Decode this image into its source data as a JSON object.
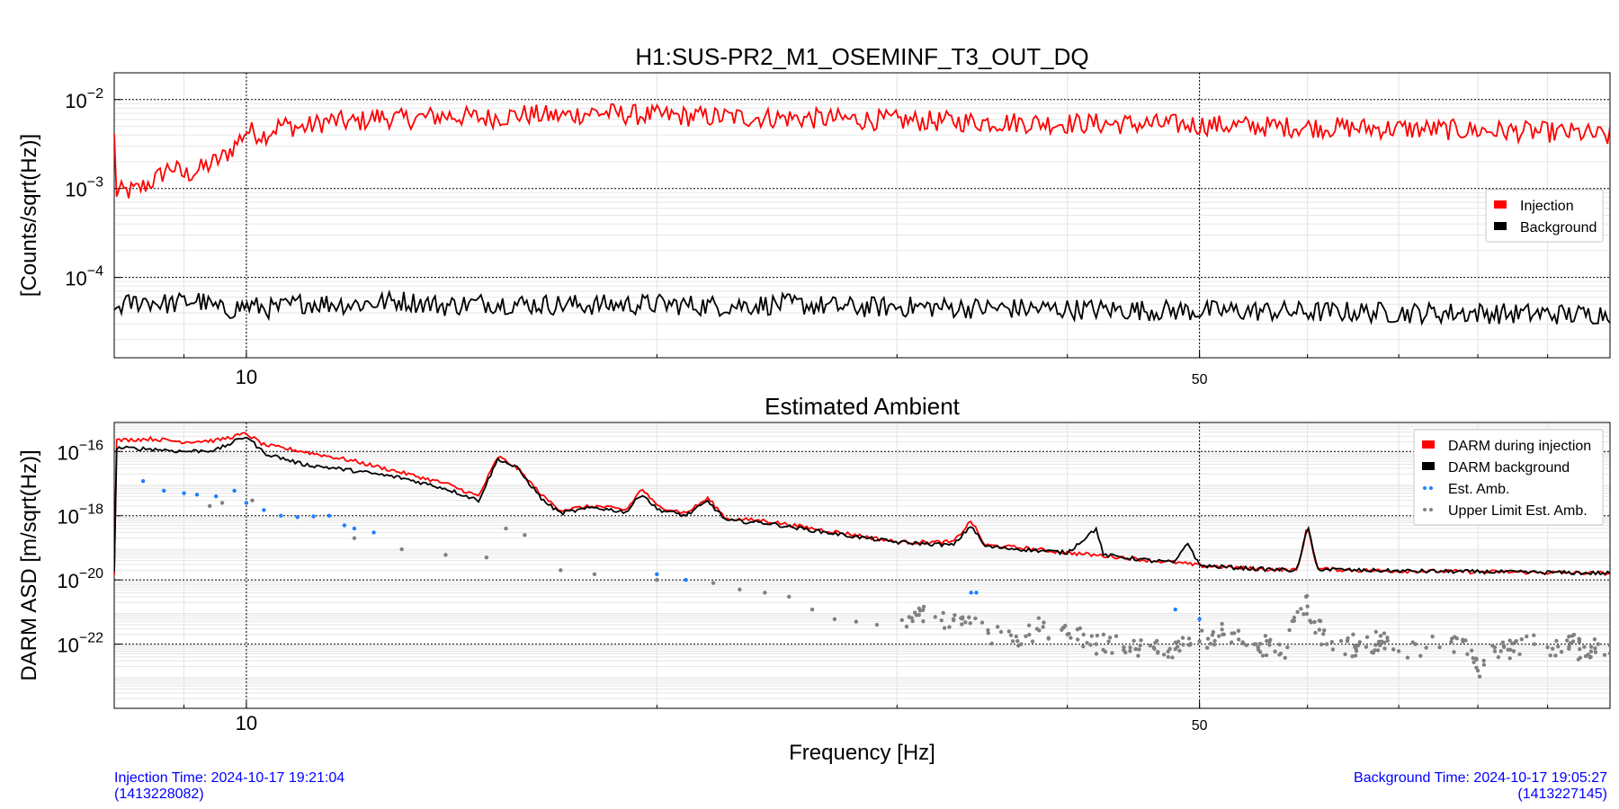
{
  "colors": {
    "injection": "#ff0000",
    "background": "#000000",
    "est_amb": "#1e7fff",
    "upper_limit": "#808080",
    "footer_text": "#0000ff"
  },
  "footer": {
    "injection_time": "Injection Time: 2024-10-17 19:21:04",
    "injection_gps": "(1413228082)",
    "background_time": "Background Time: 2024-10-17 19:05:27",
    "background_gps": "(1413227145)"
  },
  "chart_data": [
    {
      "type": "line",
      "title": "H1:SUS-PR2_M1_OSEMINF_T3_OUT_DQ",
      "xlabel": "",
      "ylabel": "[Counts/sqrt(Hz)]",
      "xscale": "log",
      "yscale": "log",
      "xlim": [
        8,
        100
      ],
      "ylim": [
        1.25e-05,
        0.02
      ],
      "xticks": [
        {
          "value": 10,
          "label": "10"
        },
        {
          "value": 50,
          "label": "50"
        }
      ],
      "yticks": [
        {
          "value": 0.01,
          "base": "10",
          "exp": "−2"
        },
        {
          "value": 0.001,
          "base": "10",
          "exp": "−3"
        },
        {
          "value": 0.0001,
          "base": "10",
          "exp": "−4"
        }
      ],
      "grid": true,
      "legend_position": "right",
      "series": [
        {
          "name": "Injection",
          "kind": "line",
          "points": [
            [
              8,
              0.0009
            ],
            [
              8.3,
              0.00095
            ],
            [
              8.6,
              0.0013
            ],
            [
              8.8,
              0.0018
            ],
            [
              9,
              0.0014
            ],
            [
              9.3,
              0.0017
            ],
            [
              9.6,
              0.0022
            ],
            [
              9.8,
              0.003
            ],
            [
              10,
              0.0045
            ],
            [
              10.3,
              0.004
            ],
            [
              10.6,
              0.0052
            ],
            [
              11,
              0.0048
            ],
            [
              11.5,
              0.0058
            ],
            [
              12,
              0.0055
            ],
            [
              12.5,
              0.0064
            ],
            [
              13,
              0.006
            ],
            [
              14,
              0.0066
            ],
            [
              15,
              0.0062
            ],
            [
              16,
              0.0068
            ],
            [
              17,
              0.0065
            ],
            [
              18,
              0.0072
            ],
            [
              19,
              0.0068
            ],
            [
              20,
              0.0066
            ],
            [
              22,
              0.0064
            ],
            [
              25,
              0.0062
            ],
            [
              28,
              0.006
            ],
            [
              30,
              0.0058
            ],
            [
              35,
              0.0056
            ],
            [
              40,
              0.0054
            ],
            [
              45,
              0.0053
            ],
            [
              50,
              0.0052
            ],
            [
              55,
              0.005
            ],
            [
              60,
              0.0049
            ],
            [
              65,
              0.0048
            ],
            [
              70,
              0.0047
            ],
            [
              75,
              0.0046
            ],
            [
              80,
              0.0045
            ],
            [
              85,
              0.0044
            ],
            [
              90,
              0.0043
            ],
            [
              95,
              0.0042
            ],
            [
              100,
              0.0038
            ]
          ]
        },
        {
          "name": "Background",
          "kind": "line",
          "points": [
            [
              8,
              4.6e-05
            ],
            [
              8.4,
              5.5e-05
            ],
            [
              8.8,
              5e-05
            ],
            [
              9.2,
              5.6e-05
            ],
            [
              9.6,
              4.2e-05
            ],
            [
              10,
              4.8e-05
            ],
            [
              10.5,
              4.4e-05
            ],
            [
              11,
              5.2e-05
            ],
            [
              12,
              5e-05
            ],
            [
              13,
              5.5e-05
            ],
            [
              14,
              4.8e-05
            ],
            [
              15,
              5.2e-05
            ],
            [
              16,
              5e-05
            ],
            [
              18,
              4.9e-05
            ],
            [
              20,
              5e-05
            ],
            [
              22,
              4.8e-05
            ],
            [
              25,
              5e-05
            ],
            [
              28,
              4.6e-05
            ],
            [
              30,
              4.7e-05
            ],
            [
              35,
              4.5e-05
            ],
            [
              40,
              4.4e-05
            ],
            [
              45,
              4.3e-05
            ],
            [
              50,
              4.2e-05
            ],
            [
              55,
              4.2e-05
            ],
            [
              60,
              4.1e-05
            ],
            [
              65,
              4.1e-05
            ],
            [
              70,
              4e-05
            ],
            [
              75,
              4e-05
            ],
            [
              80,
              4e-05
            ],
            [
              85,
              3.9e-05
            ],
            [
              90,
              3.9e-05
            ],
            [
              95,
              3.8e-05
            ],
            [
              100,
              4e-05
            ]
          ]
        }
      ]
    },
    {
      "type": "line",
      "title": "Estimated Ambient",
      "xlabel": "Frequency [Hz]",
      "ylabel": "DARM ASD [m/sqrt(Hz)]",
      "xscale": "log",
      "yscale": "log",
      "xlim": [
        8,
        100
      ],
      "ylim": [
        1e-24,
        8e-16
      ],
      "xticks": [
        {
          "value": 10,
          "label": "10"
        },
        {
          "value": 50,
          "label": "50"
        }
      ],
      "yticks": [
        {
          "value": 1e-16,
          "base": "10",
          "exp": "−16"
        },
        {
          "value": 1e-18,
          "base": "10",
          "exp": "−18"
        },
        {
          "value": 1e-20,
          "base": "10",
          "exp": "−20"
        },
        {
          "value": 1e-22,
          "base": "10",
          "exp": "−22"
        }
      ],
      "grid": true,
      "legend_position": "top-right",
      "series": [
        {
          "name": "DARM during injection",
          "kind": "line",
          "points": [
            [
              8,
              2.2e-16
            ],
            [
              8.5,
              2.5e-16
            ],
            [
              9,
              2e-16
            ],
            [
              9.5,
              2.2e-16
            ],
            [
              10,
              3.6e-16
            ],
            [
              10.3,
              1.6e-16
            ],
            [
              11,
              1e-16
            ],
            [
              12,
              5e-17
            ],
            [
              13,
              2.2e-17
            ],
            [
              14,
              1e-17
            ],
            [
              14.8,
              4e-18
            ],
            [
              15.3,
              7e-17
            ],
            [
              15.8,
              3e-17
            ],
            [
              16.5,
              4e-18
            ],
            [
              17,
              1.5e-18
            ],
            [
              18,
              2e-18
            ],
            [
              19,
              1.5e-18
            ],
            [
              19.5,
              7e-18
            ],
            [
              20,
              2e-18
            ],
            [
              21,
              1.2e-18
            ],
            [
              21.8,
              3.5e-18
            ],
            [
              22.5,
              8e-19
            ],
            [
              24,
              7e-19
            ],
            [
              26,
              4e-19
            ],
            [
              28,
              2.5e-19
            ],
            [
              30,
              1.5e-19
            ],
            [
              33,
              1.5e-19
            ],
            [
              34,
              7e-19
            ],
            [
              34.8,
              1.2e-19
            ],
            [
              37,
              1e-19
            ],
            [
              40,
              7e-20
            ],
            [
              44,
              5e-20
            ],
            [
              46,
              4e-20
            ],
            [
              48,
              3.5e-20
            ],
            [
              50,
              2.8e-20
            ],
            [
              55,
              2.2e-20
            ],
            [
              59,
              2e-20
            ],
            [
              60,
              5e-19
            ],
            [
              61,
              2.2e-20
            ],
            [
              65,
              2e-20
            ],
            [
              70,
              1.9e-20
            ],
            [
              80,
              1.8e-20
            ],
            [
              90,
              1.7e-20
            ],
            [
              100,
              1.6e-20
            ]
          ]
        },
        {
          "name": "DARM background",
          "kind": "line",
          "points": [
            [
              8,
              1.3e-16
            ],
            [
              8.5,
              1.2e-16
            ],
            [
              9,
              1e-16
            ],
            [
              9.5,
              1.1e-16
            ],
            [
              10,
              3e-16
            ],
            [
              10.3,
              9e-17
            ],
            [
              11,
              4e-17
            ],
            [
              12,
              2.5e-17
            ],
            [
              13,
              1.5e-17
            ],
            [
              14,
              7e-18
            ],
            [
              14.8,
              3e-18
            ],
            [
              15.3,
              6e-17
            ],
            [
              15.8,
              3e-17
            ],
            [
              16.5,
              3e-18
            ],
            [
              17,
              1.2e-18
            ],
            [
              18,
              1.8e-18
            ],
            [
              19,
              1.3e-18
            ],
            [
              19.5,
              5e-18
            ],
            [
              20,
              1.6e-18
            ],
            [
              21,
              1e-18
            ],
            [
              21.8,
              2.8e-18
            ],
            [
              22.5,
              7e-19
            ],
            [
              24,
              6e-19
            ],
            [
              26,
              3.5e-19
            ],
            [
              28,
              2.2e-19
            ],
            [
              30,
              1.5e-19
            ],
            [
              33,
              1.2e-19
            ],
            [
              34,
              5e-19
            ],
            [
              34.8,
              1.1e-19
            ],
            [
              37,
              9e-20
            ],
            [
              40,
              7e-20
            ],
            [
              42,
              4e-19
            ],
            [
              42.5,
              6e-20
            ],
            [
              46,
              4e-20
            ],
            [
              48,
              3.5e-20
            ],
            [
              49,
              1.5e-19
            ],
            [
              50,
              2.8e-20
            ],
            [
              55,
              2.2e-20
            ],
            [
              59,
              2e-20
            ],
            [
              60,
              5e-19
            ],
            [
              61,
              2.2e-20
            ],
            [
              65,
              2e-20
            ],
            [
              70,
              1.9e-20
            ],
            [
              80,
              1.8e-20
            ],
            [
              90,
              1.7e-20
            ],
            [
              100,
              1.6e-20
            ]
          ]
        },
        {
          "name": "Est. Amb.",
          "kind": "points",
          "points": [
            [
              8.4,
              1.2e-17
            ],
            [
              8.7,
              6e-18
            ],
            [
              9,
              5e-18
            ],
            [
              9.2,
              4.5e-18
            ],
            [
              9.5,
              4e-18
            ],
            [
              9.8,
              6e-18
            ],
            [
              10,
              2.5e-18
            ],
            [
              10.3,
              1.5e-18
            ],
            [
              10.6,
              1e-18
            ],
            [
              10.9,
              9e-19
            ],
            [
              11.2,
              9.5e-19
            ],
            [
              11.5,
              1e-18
            ],
            [
              11.8,
              5e-19
            ],
            [
              12,
              4e-19
            ],
            [
              12.4,
              3e-19
            ],
            [
              20,
              1.5e-20
            ],
            [
              21,
              1e-20
            ],
            [
              34,
              4e-21
            ],
            [
              34.3,
              4e-21
            ],
            [
              48,
              1.2e-21
            ],
            [
              50,
              6e-22
            ]
          ]
        },
        {
          "name": "Upper Limit Est. Amb.",
          "kind": "points",
          "points": [
            [
              9.4,
              2e-18
            ],
            [
              9.6,
              2.5e-18
            ],
            [
              10.1,
              3e-18
            ],
            [
              12,
              2e-19
            ],
            [
              13,
              9e-20
            ],
            [
              14,
              6e-20
            ],
            [
              15,
              5e-20
            ],
            [
              15.5,
              4e-19
            ],
            [
              16,
              2.5e-19
            ],
            [
              17,
              2e-20
            ],
            [
              18,
              1.5e-20
            ],
            [
              20,
              1e-20
            ],
            [
              22,
              8e-21
            ],
            [
              23,
              5e-21
            ],
            [
              24,
              4e-21
            ],
            [
              25,
              3e-21
            ],
            [
              26,
              1.2e-21
            ],
            [
              27,
              6e-22
            ],
            [
              28,
              5e-22
            ],
            [
              29,
              4e-22
            ],
            [
              31,
              8e-22
            ],
            [
              32,
              7e-22
            ],
            [
              33,
              6e-22
            ],
            [
              35,
              2.2e-22
            ],
            [
              37,
              1e-22
            ],
            [
              38,
              3e-22
            ],
            [
              40,
              2e-22
            ],
            [
              42,
              1e-22
            ],
            [
              44,
              8e-23
            ],
            [
              46,
              9e-23
            ],
            [
              48,
              7e-23
            ],
            [
              50,
              1.2e-22
            ],
            [
              52,
              2e-22
            ],
            [
              55,
              1e-22
            ],
            [
              58,
              8e-23
            ],
            [
              59,
              1e-21
            ],
            [
              60,
              1.5e-21
            ],
            [
              62,
              1e-22
            ],
            [
              65,
              9e-23
            ],
            [
              68,
              1.2e-22
            ],
            [
              70,
              6e-23
            ],
            [
              72,
              1e-22
            ],
            [
              75,
              8e-23
            ],
            [
              78,
              1.2e-22
            ],
            [
              80,
              1.5e-23
            ],
            [
              82,
              9e-23
            ],
            [
              85,
              6e-23
            ],
            [
              88,
              1e-22
            ],
            [
              90,
              8e-23
            ],
            [
              93,
              1.3e-22
            ],
            [
              95,
              7e-23
            ],
            [
              98,
              1e-22
            ],
            [
              100,
              9e-23
            ]
          ]
        }
      ]
    }
  ]
}
